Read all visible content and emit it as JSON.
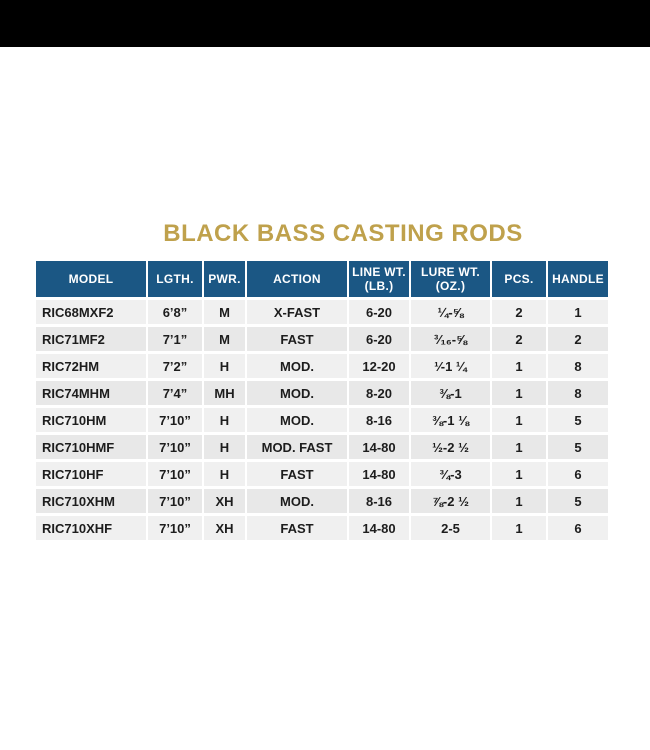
{
  "colors": {
    "band_bg": "#000000",
    "title_color": "#bfa14c",
    "header_bg": "#1b5784",
    "header_fg": "#ffffff",
    "row_odd": "#f0f0f0",
    "row_even": "#e8e8e8"
  },
  "title": "BLACK BASS CASTING RODS",
  "table": {
    "columns": [
      {
        "key": "model",
        "label": "MODEL",
        "label2": ""
      },
      {
        "key": "length",
        "label": "LGTH.",
        "label2": ""
      },
      {
        "key": "power",
        "label": "PWR.",
        "label2": ""
      },
      {
        "key": "action",
        "label": "ACTION",
        "label2": ""
      },
      {
        "key": "line-wt",
        "label": "LINE WT.",
        "label2": "(LB.)"
      },
      {
        "key": "lure-wt",
        "label": "LURE WT.",
        "label2": "(OZ.)"
      },
      {
        "key": "pcs",
        "label": "PCS.",
        "label2": ""
      },
      {
        "key": "handle",
        "label": "HANDLE",
        "label2": ""
      }
    ],
    "rows": [
      [
        "RIC68MXF2",
        "6’8”",
        "M",
        "X-FAST",
        "6-20",
        "¼-⅝",
        "2",
        "1"
      ],
      [
        "RIC71MF2",
        "7’1”",
        "M",
        "FAST",
        "6-20",
        "³⁄₁₆-⅝",
        "2",
        "2"
      ],
      [
        "RIC72HM",
        "7’2”",
        "H",
        "MOD.",
        "12-20",
        "¹⁄-1 ¼",
        "1",
        "8"
      ],
      [
        "RIC74MHM",
        "7’4”",
        "MH",
        "MOD.",
        "8-20",
        "⅜-1",
        "1",
        "8"
      ],
      [
        "RIC710HM",
        "7’10”",
        "H",
        "MOD.",
        "8-16",
        "⅜-1 ⅛",
        "1",
        "5"
      ],
      [
        "RIC710HMF",
        "7’10”",
        "H",
        "MOD. FAST",
        "14-80",
        "½-2 ½",
        "1",
        "5"
      ],
      [
        "RIC710HF",
        "7’10”",
        "H",
        "FAST",
        "14-80",
        "¾-3",
        "1",
        "6"
      ],
      [
        "RIC710XHM",
        "7’10”",
        "XH",
        "MOD.",
        "8-16",
        "⅞-2 ½",
        "1",
        "5"
      ],
      [
        "RIC710XHF",
        "7’10”",
        "XH",
        "FAST",
        "14-80",
        "2-5",
        "1",
        "6"
      ]
    ]
  }
}
